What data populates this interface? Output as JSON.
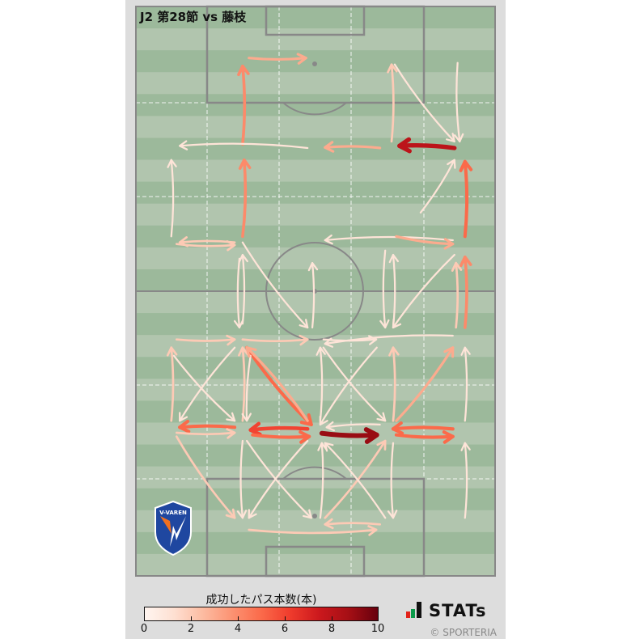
{
  "title": "J2 第28節 vs 藤枝",
  "team_logo_text": "V-VAREN",
  "legend": {
    "title": "成功したパス本数(本)",
    "ticks": [
      "0",
      "2",
      "4",
      "6",
      "8",
      "10"
    ],
    "min": 0,
    "max": 10,
    "colormap": [
      "#fff5f0",
      "#fee0d2",
      "#fcbba1",
      "#fc9272",
      "#fb6a4a",
      "#ef3b2c",
      "#cb181d",
      "#a50f15",
      "#67000d"
    ]
  },
  "brand": {
    "name": "STATs",
    "copyright": "© SPORTERIA"
  },
  "pitch": {
    "length_m": 105,
    "width_m": 68,
    "stripe_dark": "#9cb99b",
    "stripe_light": "#b1c5ae",
    "line_color": "#888888"
  },
  "passes_fields": [
    "x_from_m",
    "y_from_m",
    "x_to_m",
    "y_to_m",
    "count"
  ],
  "passes": [
    [
      21.4,
      9.5,
      32.2,
      9.5,
      3
    ],
    [
      20.2,
      25.4,
      20.2,
      11.0,
      4
    ],
    [
      32.5,
      26.1,
      8.3,
      25.7,
      1
    ],
    [
      46.2,
      26.1,
      35.8,
      26.0,
      3
    ],
    [
      60.3,
      26.1,
      49.9,
      25.7,
      8
    ],
    [
      48.4,
      24.9,
      48.4,
      10.7,
      2
    ],
    [
      49.0,
      10.7,
      60.3,
      24.9,
      1
    ],
    [
      60.9,
      10.4,
      61.3,
      24.9,
      1
    ],
    [
      20.2,
      42.4,
      20.5,
      28.3,
      4
    ],
    [
      6.7,
      42.4,
      6.7,
      28.3,
      1
    ],
    [
      53.9,
      38.0,
      60.3,
      28.3,
      1
    ],
    [
      62.3,
      42.4,
      62.3,
      28.6,
      5
    ],
    [
      60.0,
      43.1,
      35.8,
      43.1,
      1
    ],
    [
      49.3,
      42.4,
      60.0,
      43.8,
      3
    ],
    [
      18.7,
      43.5,
      8.3,
      43.5,
      2
    ],
    [
      7.7,
      43.8,
      18.7,
      44.0,
      2
    ],
    [
      20.2,
      43.5,
      32.5,
      59.2,
      1
    ],
    [
      19.6,
      46.5,
      19.6,
      59.2,
      1
    ],
    [
      20.2,
      58.5,
      20.2,
      45.8,
      1
    ],
    [
      33.4,
      59.2,
      33.4,
      47.3,
      1
    ],
    [
      47.2,
      45.0,
      47.2,
      59.2,
      1
    ],
    [
      48.7,
      59.2,
      48.7,
      45.8,
      1
    ],
    [
      60.3,
      45.8,
      48.7,
      59.2,
      1
    ],
    [
      60.6,
      59.2,
      60.6,
      47.3,
      2
    ],
    [
      62.3,
      59.2,
      62.3,
      46.2,
      4
    ],
    [
      7.7,
      61.4,
      18.7,
      61.4,
      2
    ],
    [
      20.2,
      61.4,
      32.5,
      61.4,
      2
    ],
    [
      35.5,
      61.4,
      45.5,
      61.4,
      1
    ],
    [
      60.0,
      60.7,
      35.8,
      62.2,
      1
    ],
    [
      6.7,
      76.4,
      6.7,
      62.9,
      2
    ],
    [
      7.2,
      64.4,
      18.7,
      76.4,
      1
    ],
    [
      18.7,
      62.9,
      8.3,
      76.4,
      1
    ],
    [
      20.2,
      76.4,
      20.2,
      62.9,
      2
    ],
    [
      21.0,
      62.9,
      33.2,
      77.1,
      5
    ],
    [
      21.7,
      64.4,
      21.0,
      76.4,
      1
    ],
    [
      32.5,
      76.4,
      21.0,
      62.9,
      3
    ],
    [
      34.9,
      76.4,
      34.9,
      62.9,
      1
    ],
    [
      35.5,
      62.9,
      47.2,
      76.4,
      1
    ],
    [
      48.7,
      76.4,
      48.7,
      62.9,
      2
    ],
    [
      49.3,
      76.4,
      60.0,
      62.9,
      3
    ],
    [
      62.3,
      76.4,
      62.3,
      62.9,
      1
    ],
    [
      45.6,
      62.9,
      34.9,
      77.1,
      1
    ],
    [
      18.7,
      77.6,
      8.3,
      77.6,
      5
    ],
    [
      7.7,
      78.6,
      18.7,
      78.6,
      2
    ],
    [
      32.5,
      77.9,
      21.7,
      78.1,
      6
    ],
    [
      22.1,
      79.0,
      32.8,
      79.3,
      5
    ],
    [
      35.2,
      78.7,
      45.6,
      79.0,
      9
    ],
    [
      60.0,
      77.9,
      48.7,
      77.9,
      5
    ],
    [
      49.3,
      79.0,
      60.0,
      79.3,
      5
    ],
    [
      46.2,
      77.1,
      36.1,
      77.6,
      1
    ],
    [
      7.7,
      79.3,
      18.7,
      94.3,
      2
    ],
    [
      20.2,
      80.1,
      20.2,
      94.3,
      1
    ],
    [
      21.0,
      80.1,
      33.2,
      94.3,
      1
    ],
    [
      32.5,
      80.1,
      21.4,
      94.3,
      1
    ],
    [
      34.9,
      94.3,
      35.2,
      80.5,
      1
    ],
    [
      35.8,
      94.3,
      47.2,
      80.1,
      2
    ],
    [
      47.2,
      94.3,
      35.8,
      80.5,
      1
    ],
    [
      48.7,
      80.5,
      48.7,
      94.3,
      1
    ],
    [
      62.3,
      94.3,
      62.3,
      80.5,
      1
    ],
    [
      21.4,
      96.5,
      45.5,
      96.5,
      2
    ],
    [
      46.2,
      95.5,
      35.8,
      95.5,
      2
    ]
  ]
}
